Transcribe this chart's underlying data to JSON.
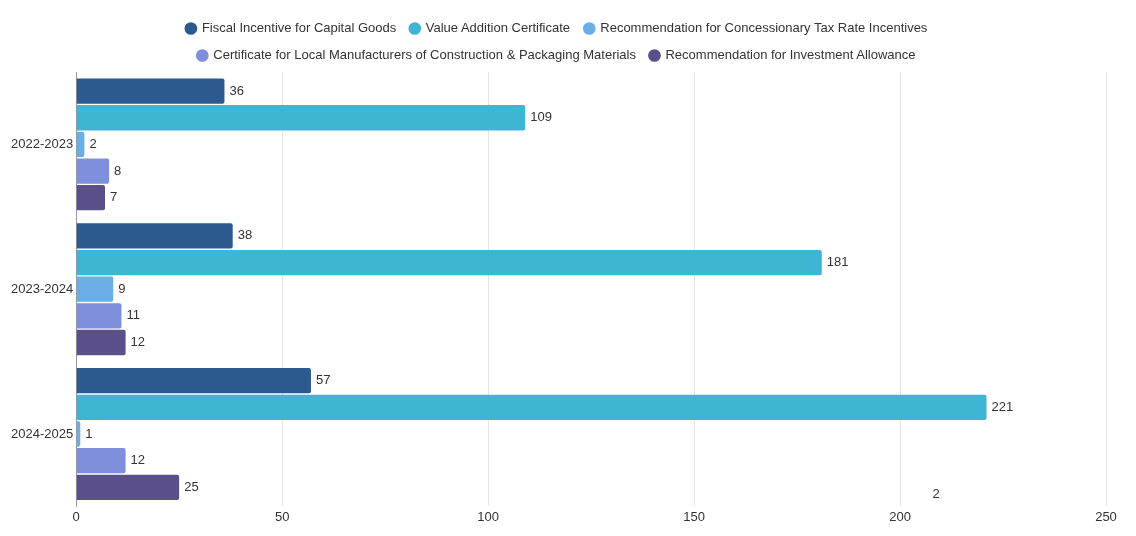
{
  "chart_data": {
    "type": "bar",
    "orientation": "horizontal",
    "categories": [
      "2022-2023",
      "2023-2024",
      "2024-2025"
    ],
    "series": [
      {
        "name": "Fiscal Incentive for Capital Goods",
        "color": "#2d5a8e",
        "values": [
          36,
          38,
          57
        ]
      },
      {
        "name": "Value Addition Certificate",
        "color": "#3eb5d3",
        "values": [
          109,
          181,
          221
        ]
      },
      {
        "name": "Recommendation for Concessionary Tax Rate Incentives",
        "color": "#6aaee3",
        "values": [
          2,
          9,
          1
        ]
      },
      {
        "name": "Certificate for Local Manufacturers of Construction & Packaging Materials",
        "color": "#7f8fdc",
        "values": [
          8,
          11,
          12
        ]
      },
      {
        "name": "Recommendation for Investment Allowance",
        "color": "#5b4f8a",
        "values": [
          7,
          12,
          25
        ]
      }
    ],
    "xlim": [
      0,
      250
    ],
    "xticks": [
      0,
      50,
      100,
      150,
      200,
      250
    ],
    "grid": "x",
    "legend": "top",
    "data_labels": true,
    "annotations": [
      "2"
    ]
  }
}
